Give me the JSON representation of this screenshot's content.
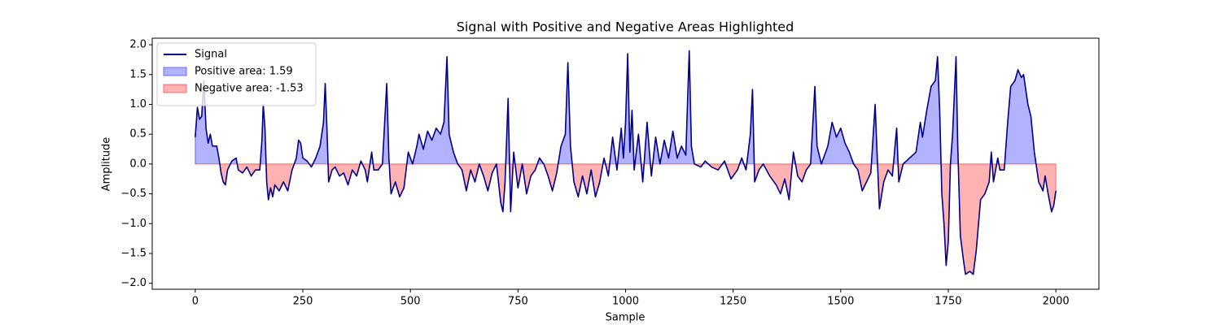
{
  "chart_data": {
    "type": "line",
    "title": "Signal with Positive and Negative Areas Highlighted",
    "xlabel": "Sample",
    "ylabel": "Amplitude",
    "xlim": [
      -100,
      2100
    ],
    "ylim": [
      -2.1,
      2.11
    ],
    "xticks": [
      0,
      250,
      500,
      750,
      1000,
      1250,
      1500,
      1750,
      2000
    ],
    "yticks": [
      {
        "value": -2.0,
        "label": "−2.0"
      },
      {
        "value": -1.5,
        "label": "−1.5"
      },
      {
        "value": -1.0,
        "label": "−1.0"
      },
      {
        "value": -0.5,
        "label": "−0.5"
      },
      {
        "value": 0.0,
        "label": "0.0"
      },
      {
        "value": 0.5,
        "label": "0.5"
      },
      {
        "value": 1.0,
        "label": "1.0"
      },
      {
        "value": 1.5,
        "label": "1.5"
      },
      {
        "value": 2.0,
        "label": "2.0"
      }
    ],
    "grid": false,
    "legend": "upper left",
    "x": [
      0,
      5,
      10,
      15,
      20,
      25,
      30,
      35,
      40,
      50,
      55,
      60,
      65,
      70,
      75,
      85,
      95,
      100,
      110,
      120,
      130,
      140,
      150,
      155,
      158,
      162,
      166,
      170,
      175,
      180,
      185,
      195,
      205,
      215,
      225,
      235,
      240,
      245,
      250,
      260,
      270,
      280,
      290,
      298,
      302,
      306,
      310,
      318,
      325,
      335,
      345,
      355,
      365,
      375,
      385,
      395,
      400,
      410,
      415,
      425,
      435,
      445,
      450,
      455,
      465,
      475,
      485,
      495,
      505,
      515,
      520,
      530,
      540,
      550,
      560,
      570,
      578,
      585,
      590,
      600,
      610,
      620,
      630,
      640,
      650,
      660,
      670,
      680,
      690,
      700,
      710,
      715,
      720,
      727,
      733,
      740,
      750,
      760,
      770,
      780,
      790,
      800,
      810,
      820,
      830,
      840,
      850,
      860,
      866,
      872,
      880,
      890,
      900,
      910,
      920,
      930,
      940,
      950,
      960,
      970,
      980,
      990,
      995,
      1000,
      1005,
      1010,
      1015,
      1020,
      1030,
      1040,
      1050,
      1060,
      1070,
      1080,
      1090,
      1100,
      1110,
      1120,
      1130,
      1140,
      1148,
      1153,
      1160,
      1175,
      1185,
      1200,
      1215,
      1230,
      1245,
      1260,
      1270,
      1280,
      1290,
      1295,
      1300,
      1310,
      1320,
      1335,
      1350,
      1360,
      1370,
      1380,
      1390,
      1400,
      1410,
      1420,
      1430,
      1440,
      1445,
      1455,
      1470,
      1480,
      1490,
      1500,
      1510,
      1520,
      1530,
      1540,
      1550,
      1560,
      1570,
      1580,
      1585,
      1590,
      1600,
      1610,
      1620,
      1630,
      1635,
      1645,
      1660,
      1675,
      1685,
      1690,
      1700,
      1710,
      1720,
      1725,
      1730,
      1735,
      1740,
      1745,
      1750,
      1755,
      1760,
      1768,
      1772,
      1778,
      1785,
      1790,
      1800,
      1808,
      1815,
      1825,
      1835,
      1845,
      1850,
      1855,
      1865,
      1870,
      1880,
      1888,
      1895,
      1905,
      1912,
      1920,
      1925,
      1935,
      1942,
      1950,
      1960,
      1970,
      1975,
      1982,
      1990,
      1995,
      2000
    ],
    "series": [
      {
        "name": "Signal",
        "color": "#00008b",
        "values": [
          0.45,
          0.95,
          0.75,
          0.8,
          1.4,
          0.6,
          0.35,
          0.5,
          0.3,
          0.3,
          0.1,
          -0.15,
          -0.3,
          -0.35,
          -0.1,
          0.05,
          0.1,
          -0.1,
          -0.15,
          -0.05,
          -0.2,
          -0.1,
          -0.1,
          0.4,
          1.0,
          0.6,
          -0.3,
          -0.6,
          -0.4,
          -0.55,
          -0.35,
          -0.45,
          -0.3,
          -0.45,
          -0.1,
          0.1,
          0.4,
          0.35,
          0.1,
          0.05,
          -0.05,
          0.1,
          0.3,
          0.7,
          1.35,
          0.6,
          -0.3,
          -0.1,
          -0.05,
          -0.2,
          -0.15,
          -0.35,
          -0.1,
          -0.2,
          0.05,
          -0.1,
          -0.3,
          0.2,
          -0.1,
          -0.1,
          0.0,
          1.35,
          0.1,
          -0.5,
          -0.3,
          -0.55,
          -0.4,
          0.2,
          0.0,
          0.3,
          0.5,
          0.25,
          0.55,
          0.4,
          0.6,
          0.5,
          0.7,
          1.8,
          0.5,
          0.2,
          0.0,
          -0.1,
          -0.45,
          -0.1,
          -0.3,
          0.0,
          -0.2,
          -0.45,
          -0.15,
          0.0,
          -0.65,
          -0.8,
          -0.3,
          1.1,
          -0.8,
          0.2,
          -0.4,
          0.0,
          -0.5,
          -0.2,
          -0.1,
          0.1,
          0.0,
          -0.2,
          -0.45,
          -0.15,
          0.3,
          0.5,
          1.7,
          0.3,
          -0.3,
          -0.55,
          -0.2,
          -0.5,
          -0.1,
          -0.55,
          -0.3,
          0.1,
          -0.2,
          0.45,
          -0.1,
          0.6,
          0.1,
          0.7,
          1.85,
          0.2,
          0.9,
          -0.1,
          0.5,
          -0.3,
          0.7,
          -0.2,
          0.45,
          0.0,
          0.4,
          0.1,
          0.55,
          0.1,
          0.3,
          0.15,
          1.9,
          0.3,
          0.0,
          -0.05,
          0.05,
          -0.05,
          -0.1,
          0.05,
          -0.25,
          -0.1,
          0.1,
          -0.1,
          0.5,
          1.25,
          -0.3,
          -0.1,
          0.0,
          -0.2,
          -0.35,
          -0.5,
          -0.25,
          -0.6,
          0.2,
          -0.2,
          -0.3,
          -0.1,
          0.0,
          1.3,
          0.3,
          0.0,
          0.3,
          0.7,
          0.45,
          0.6,
          0.35,
          0.2,
          0.0,
          -0.1,
          -0.45,
          -0.3,
          -0.15,
          1.0,
          0.1,
          -0.75,
          -0.3,
          -0.1,
          -0.2,
          0.6,
          -0.3,
          0.0,
          0.1,
          0.2,
          0.7,
          0.45,
          0.9,
          1.3,
          1.4,
          1.8,
          0.9,
          -0.5,
          -1.0,
          -1.7,
          -1.3,
          0.0,
          0.5,
          1.8,
          0.3,
          -1.2,
          -1.6,
          -1.85,
          -1.8,
          -1.85,
          -1.45,
          -0.6,
          -0.5,
          -0.3,
          0.2,
          -0.3,
          0.1,
          -0.1,
          -0.1,
          0.7,
          1.3,
          1.4,
          1.58,
          1.45,
          1.5,
          1.0,
          0.8,
          0.2,
          -0.3,
          -0.45,
          -0.2,
          -0.5,
          -0.8,
          -0.7,
          -0.45
        ]
      }
    ],
    "areas": [
      {
        "name": "Positive area: 1.59",
        "color": "#0000ff",
        "opacity": 0.3,
        "side": "positive"
      },
      {
        "name": "Negative area: -1.53",
        "color": "#ff0000",
        "opacity": 0.3,
        "side": "negative"
      }
    ]
  }
}
